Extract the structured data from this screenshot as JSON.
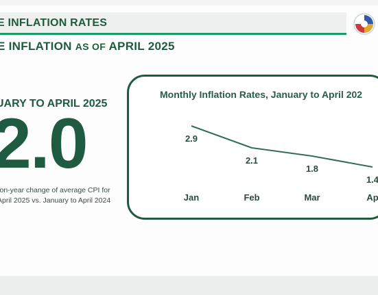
{
  "header": {
    "title": "E INFLATION RATES",
    "subheading_main": "E INFLATION",
    "subheading_small": "AS OF",
    "subheading_date": "APRIL 2025"
  },
  "summary": {
    "period": "UARY TO APRIL 2025",
    "value": "2.0",
    "description_line1": "-on-year change of average CPI for",
    "description_line2": "April 2025 vs. January to April 2024"
  },
  "colors": {
    "primary_green": "#1e5b3e",
    "accent_green": "#1a9a64",
    "line": "#2f6e58"
  },
  "chart_data": {
    "type": "line",
    "title": "Monthly Inflation Rates, January to April 202",
    "categories": [
      "Jan",
      "Feb",
      "Mar",
      "Ap"
    ],
    "values": [
      2.9,
      2.1,
      1.8,
      1.4
    ],
    "value_labels": [
      "2.9",
      "2.1",
      "1.8",
      "1.4"
    ],
    "ylim": [
      0,
      3.5
    ],
    "grid": false,
    "legend": "none"
  }
}
